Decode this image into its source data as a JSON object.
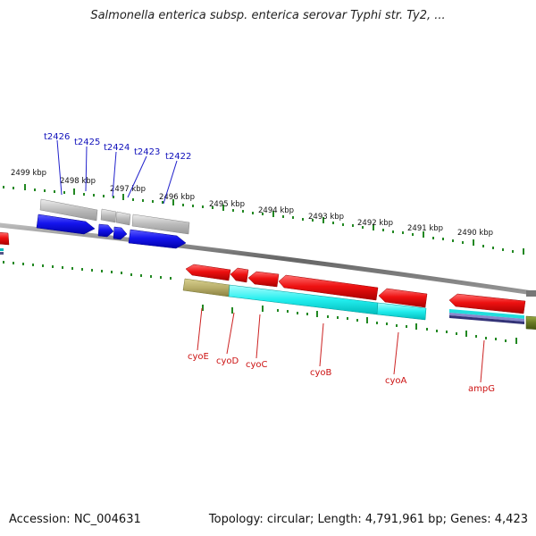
{
  "title": "Salmonella enterica subsp. enterica serovar Typhi str. Ty2, ...",
  "footer": {
    "accession": "Accession: NC_004631",
    "summary": "Topology: circular; Length: 4,791,961 bp; Genes: 4,423"
  },
  "scale_labels": [
    "2499 kbp",
    "2498 kbp",
    "2497 kbp",
    "2496 kbp",
    "2495 kbp",
    "2494 kbp",
    "2493 kbp",
    "2492 kbp",
    "2491 kbp",
    "2490 kbp"
  ],
  "top_gene_labels": [
    "t2426",
    "t2425",
    "t2424",
    "t2423",
    "t2422"
  ],
  "bottom_gene_labels": [
    "cyoE",
    "cyoD",
    "cyoC",
    "cyoB",
    "cyoA",
    "ampG"
  ],
  "colors": {
    "forward_gene": "#0000ee",
    "reverse_gene": "#ee0000",
    "tick": "#228822",
    "backbone": "#777777",
    "top_label": "#1010bb",
    "bottom_label": "#cc1111"
  }
}
